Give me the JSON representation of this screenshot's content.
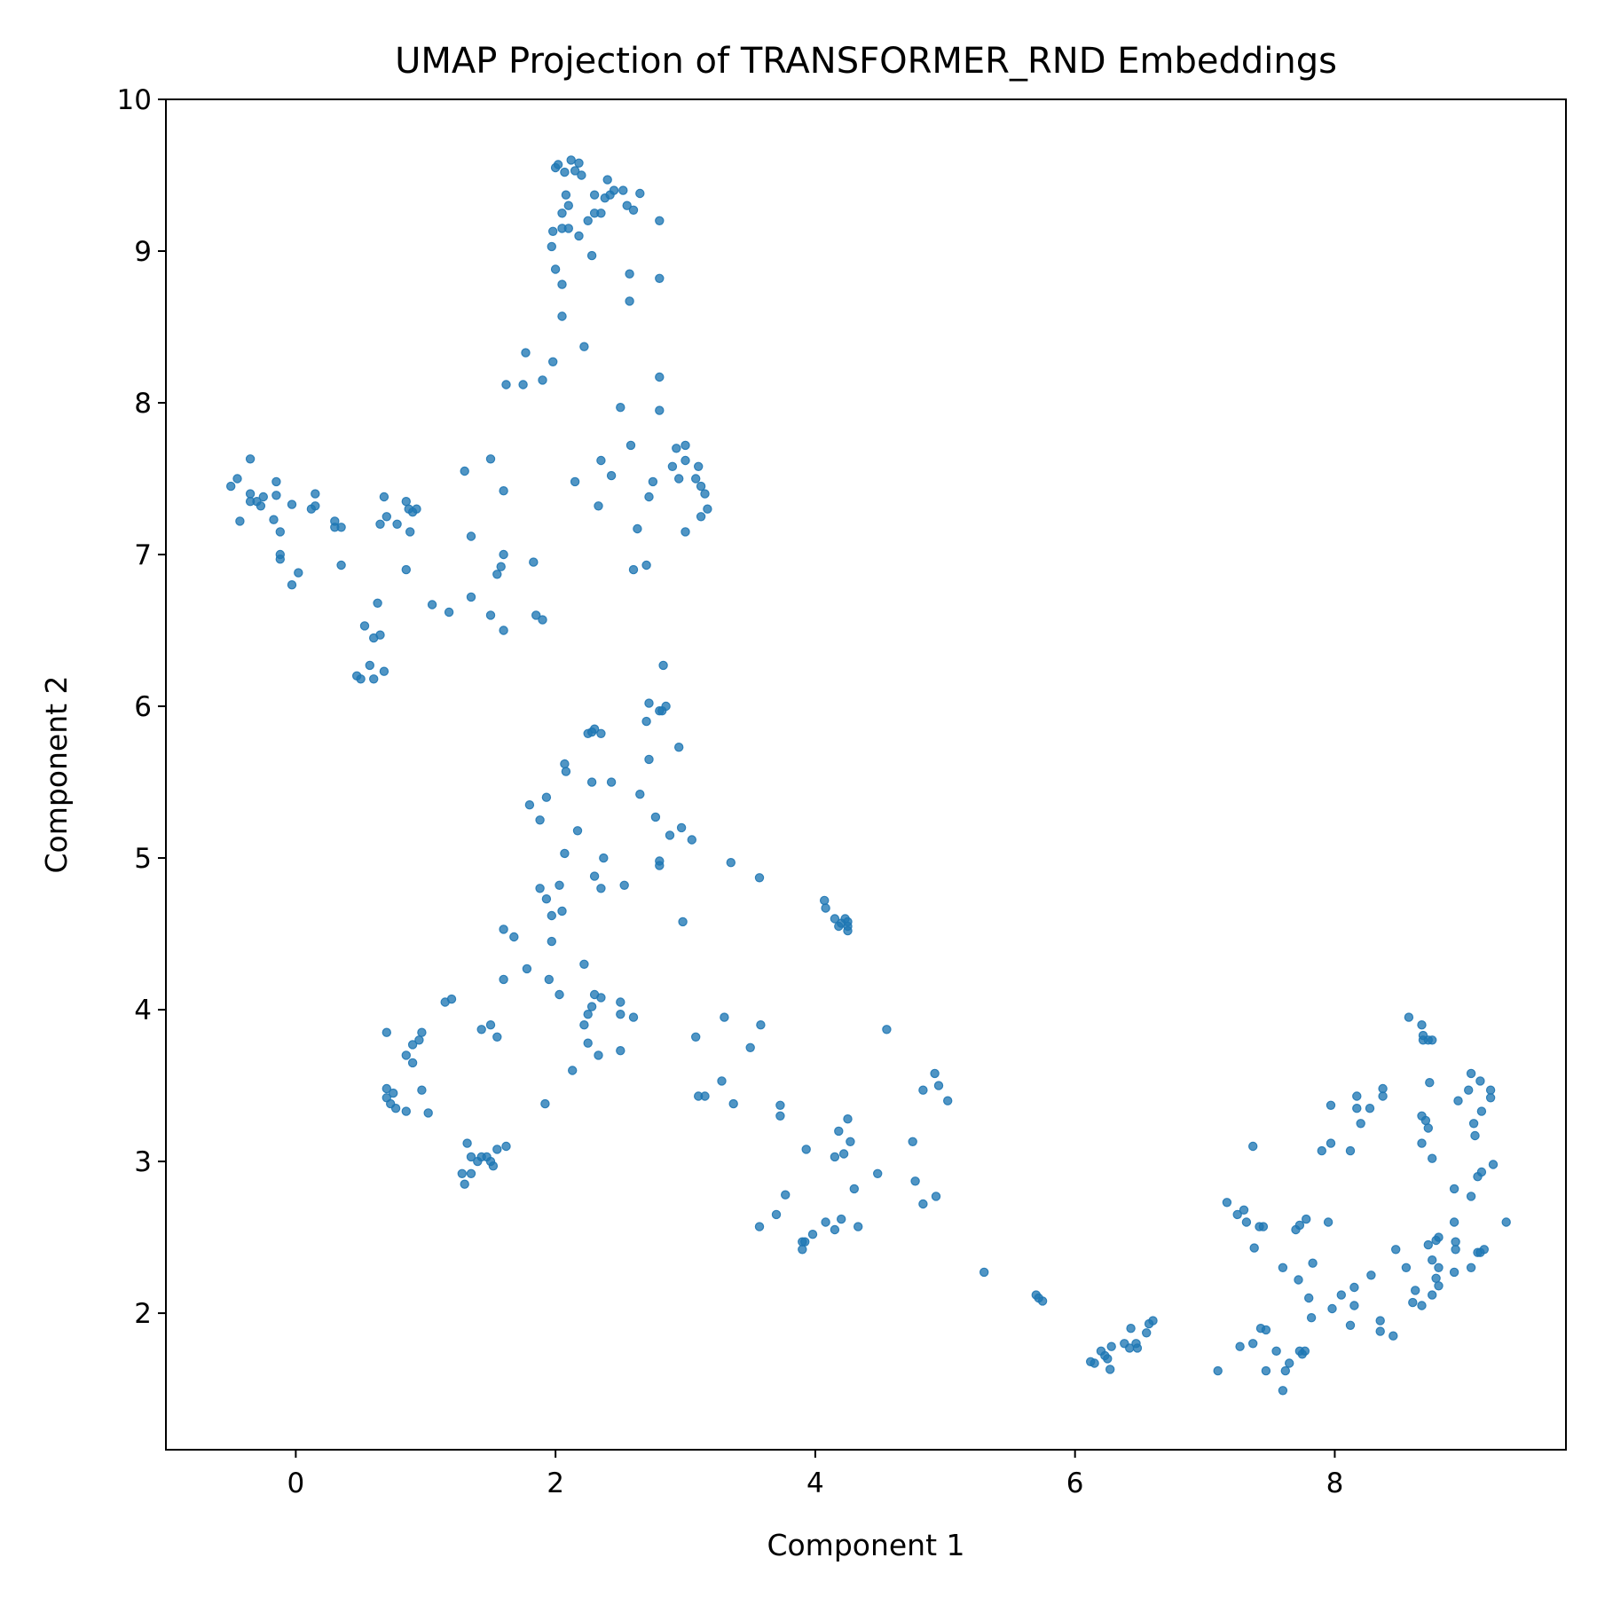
{
  "chart_data": {
    "type": "scatter",
    "title": "UMAP Projection of TRANSFORMER_RND Embeddings",
    "xlabel": "Component 1",
    "ylabel": "Component 2",
    "xlim": [
      -1.0,
      9.78
    ],
    "ylim": [
      1.1,
      10.0
    ],
    "xticks": [
      0,
      2,
      4,
      6,
      8
    ],
    "yticks": [
      2,
      3,
      4,
      5,
      6,
      7,
      8,
      9,
      10
    ],
    "grid": false,
    "legend": "none",
    "color": "#1f77b4",
    "points": [
      [
        2.0,
        9.55
      ],
      [
        2.02,
        9.57
      ],
      [
        2.12,
        9.6
      ],
      [
        2.18,
        9.58
      ],
      [
        2.07,
        9.52
      ],
      [
        2.2,
        9.5
      ],
      [
        2.15,
        9.53
      ],
      [
        2.4,
        9.47
      ],
      [
        2.45,
        9.4
      ],
      [
        2.52,
        9.4
      ],
      [
        2.65,
        9.38
      ],
      [
        2.3,
        9.37
      ],
      [
        2.42,
        9.37
      ],
      [
        2.38,
        9.35
      ],
      [
        2.08,
        9.37
      ],
      [
        2.1,
        9.3
      ],
      [
        2.55,
        9.3
      ],
      [
        2.6,
        9.27
      ],
      [
        2.05,
        9.25
      ],
      [
        2.3,
        9.25
      ],
      [
        2.35,
        9.25
      ],
      [
        2.25,
        9.2
      ],
      [
        2.8,
        9.2
      ],
      [
        2.05,
        9.15
      ],
      [
        2.1,
        9.15
      ],
      [
        1.98,
        9.13
      ],
      [
        2.18,
        9.1
      ],
      [
        1.97,
        9.03
      ],
      [
        2.28,
        8.97
      ],
      [
        2.0,
        8.88
      ],
      [
        2.57,
        8.85
      ],
      [
        2.8,
        8.82
      ],
      [
        2.05,
        8.78
      ],
      [
        2.57,
        8.67
      ],
      [
        2.05,
        8.57
      ],
      [
        2.22,
        8.37
      ],
      [
        1.77,
        8.33
      ],
      [
        1.98,
        8.27
      ],
      [
        1.9,
        8.15
      ],
      [
        1.62,
        8.12
      ],
      [
        1.75,
        8.12
      ],
      [
        2.8,
        8.17
      ],
      [
        2.5,
        7.97
      ],
      [
        2.8,
        7.95
      ],
      [
        2.58,
        7.72
      ],
      [
        2.93,
        7.7
      ],
      [
        3.0,
        7.72
      ],
      [
        1.5,
        7.63
      ],
      [
        2.35,
        7.62
      ],
      [
        3.0,
        7.62
      ],
      [
        2.9,
        7.58
      ],
      [
        3.1,
        7.58
      ],
      [
        1.3,
        7.55
      ],
      [
        2.43,
        7.52
      ],
      [
        2.95,
        7.5
      ],
      [
        3.08,
        7.5
      ],
      [
        2.15,
        7.48
      ],
      [
        2.75,
        7.48
      ],
      [
        3.12,
        7.45
      ],
      [
        3.15,
        7.4
      ],
      [
        1.6,
        7.42
      ],
      [
        2.72,
        7.38
      ],
      [
        2.33,
        7.32
      ],
      [
        3.17,
        7.3
      ],
      [
        3.12,
        7.25
      ],
      [
        2.63,
        7.17
      ],
      [
        3.0,
        7.15
      ],
      [
        2.7,
        6.93
      ],
      [
        2.6,
        6.9
      ],
      [
        -0.35,
        7.63
      ],
      [
        -0.45,
        7.5
      ],
      [
        -0.5,
        7.45
      ],
      [
        -0.35,
        7.4
      ],
      [
        -0.3,
        7.35
      ],
      [
        -0.25,
        7.38
      ],
      [
        -0.27,
        7.32
      ],
      [
        -0.35,
        7.35
      ],
      [
        -0.15,
        7.48
      ],
      [
        -0.15,
        7.39
      ],
      [
        0.15,
        7.4
      ],
      [
        0.12,
        7.3
      ],
      [
        0.15,
        7.32
      ],
      [
        -0.03,
        7.33
      ],
      [
        0.68,
        7.38
      ],
      [
        0.85,
        7.35
      ],
      [
        0.87,
        7.3
      ],
      [
        0.9,
        7.28
      ],
      [
        0.93,
        7.3
      ],
      [
        0.78,
        7.2
      ],
      [
        0.88,
        7.15
      ],
      [
        0.3,
        7.22
      ],
      [
        0.3,
        7.18
      ],
      [
        0.35,
        7.18
      ],
      [
        0.65,
        7.2
      ],
      [
        0.7,
        7.25
      ],
      [
        -0.43,
        7.22
      ],
      [
        -0.17,
        7.23
      ],
      [
        -0.12,
        7.15
      ],
      [
        -0.12,
        7.0
      ],
      [
        -0.12,
        6.97
      ],
      [
        0.02,
        6.88
      ],
      [
        -0.03,
        6.8
      ],
      [
        0.35,
        6.93
      ],
      [
        0.85,
        6.9
      ],
      [
        1.35,
        7.12
      ],
      [
        1.58,
        6.92
      ],
      [
        1.6,
        7.0
      ],
      [
        1.55,
        6.87
      ],
      [
        1.83,
        6.95
      ],
      [
        1.35,
        6.72
      ],
      [
        1.05,
        6.67
      ],
      [
        0.63,
        6.68
      ],
      [
        1.18,
        6.62
      ],
      [
        1.5,
        6.6
      ],
      [
        1.85,
        6.6
      ],
      [
        1.9,
        6.57
      ],
      [
        0.53,
        6.53
      ],
      [
        1.6,
        6.5
      ],
      [
        0.65,
        6.47
      ],
      [
        0.6,
        6.45
      ],
      [
        0.57,
        6.27
      ],
      [
        0.68,
        6.23
      ],
      [
        0.47,
        6.2
      ],
      [
        0.5,
        6.18
      ],
      [
        0.6,
        6.18
      ],
      [
        2.83,
        6.27
      ],
      [
        2.72,
        6.02
      ],
      [
        2.82,
        5.97
      ],
      [
        2.85,
        6.0
      ],
      [
        2.8,
        5.97
      ],
      [
        2.7,
        5.9
      ],
      [
        2.95,
        5.73
      ],
      [
        2.25,
        5.82
      ],
      [
        2.3,
        5.85
      ],
      [
        2.35,
        5.82
      ],
      [
        2.28,
        5.83
      ],
      [
        2.72,
        5.65
      ],
      [
        2.07,
        5.62
      ],
      [
        2.08,
        5.57
      ],
      [
        2.28,
        5.5
      ],
      [
        2.43,
        5.5
      ],
      [
        2.65,
        5.42
      ],
      [
        1.93,
        5.4
      ],
      [
        1.8,
        5.35
      ],
      [
        2.77,
        5.27
      ],
      [
        1.88,
        5.25
      ],
      [
        2.97,
        5.2
      ],
      [
        2.17,
        5.18
      ],
      [
        2.88,
        5.15
      ],
      [
        3.05,
        5.12
      ],
      [
        2.07,
        5.03
      ],
      [
        2.37,
        5.0
      ],
      [
        2.8,
        4.98
      ],
      [
        2.8,
        4.95
      ],
      [
        3.35,
        4.97
      ],
      [
        2.3,
        4.88
      ],
      [
        3.57,
        4.87
      ],
      [
        2.03,
        4.82
      ],
      [
        2.53,
        4.82
      ],
      [
        2.35,
        4.8
      ],
      [
        1.88,
        4.8
      ],
      [
        1.93,
        4.73
      ],
      [
        2.05,
        4.65
      ],
      [
        1.97,
        4.62
      ],
      [
        2.98,
        4.58
      ],
      [
        1.6,
        4.53
      ],
      [
        1.68,
        4.48
      ],
      [
        1.97,
        4.45
      ],
      [
        4.07,
        4.72
      ],
      [
        4.08,
        4.67
      ],
      [
        4.15,
        4.6
      ],
      [
        4.2,
        4.57
      ],
      [
        4.25,
        4.55
      ],
      [
        4.25,
        4.52
      ],
      [
        4.23,
        4.6
      ],
      [
        4.25,
        4.58
      ],
      [
        4.18,
        4.55
      ],
      [
        2.22,
        4.3
      ],
      [
        1.78,
        4.27
      ],
      [
        1.6,
        4.2
      ],
      [
        1.95,
        4.2
      ],
      [
        2.03,
        4.1
      ],
      [
        2.3,
        4.1
      ],
      [
        2.35,
        4.08
      ],
      [
        2.5,
        4.05
      ],
      [
        2.28,
        4.02
      ],
      [
        2.25,
        3.97
      ],
      [
        2.5,
        3.97
      ],
      [
        2.6,
        3.95
      ],
      [
        3.3,
        3.95
      ],
      [
        1.15,
        4.05
      ],
      [
        1.2,
        4.07
      ],
      [
        1.43,
        3.87
      ],
      [
        1.5,
        3.9
      ],
      [
        2.22,
        3.9
      ],
      [
        3.58,
        3.9
      ],
      [
        4.55,
        3.87
      ],
      [
        0.7,
        3.85
      ],
      [
        0.97,
        3.85
      ],
      [
        0.95,
        3.8
      ],
      [
        0.9,
        3.77
      ],
      [
        1.55,
        3.82
      ],
      [
        3.08,
        3.82
      ],
      [
        2.25,
        3.78
      ],
      [
        0.85,
        3.7
      ],
      [
        2.5,
        3.73
      ],
      [
        2.33,
        3.7
      ],
      [
        3.5,
        3.75
      ],
      [
        0.9,
        3.65
      ],
      [
        2.13,
        3.6
      ],
      [
        3.28,
        3.53
      ],
      [
        4.92,
        3.58
      ],
      [
        4.95,
        3.5
      ],
      [
        0.7,
        3.48
      ],
      [
        0.97,
        3.47
      ],
      [
        4.83,
        3.47
      ],
      [
        0.75,
        3.45
      ],
      [
        0.7,
        3.42
      ],
      [
        3.1,
        3.43
      ],
      [
        3.15,
        3.43
      ],
      [
        5.02,
        3.4
      ],
      [
        0.73,
        3.38
      ],
      [
        0.77,
        3.35
      ],
      [
        0.85,
        3.33
      ],
      [
        1.02,
        3.32
      ],
      [
        1.92,
        3.38
      ],
      [
        3.37,
        3.38
      ],
      [
        3.73,
        3.37
      ],
      [
        3.73,
        3.3
      ],
      [
        4.25,
        3.28
      ],
      [
        4.18,
        3.2
      ],
      [
        1.32,
        3.12
      ],
      [
        1.62,
        3.1
      ],
      [
        1.55,
        3.08
      ],
      [
        3.93,
        3.08
      ],
      [
        4.27,
        3.13
      ],
      [
        4.75,
        3.13
      ],
      [
        1.35,
        3.03
      ],
      [
        1.43,
        3.03
      ],
      [
        1.47,
        3.03
      ],
      [
        1.4,
        3.0
      ],
      [
        1.5,
        3.0
      ],
      [
        1.52,
        2.97
      ],
      [
        4.15,
        3.03
      ],
      [
        4.22,
        3.05
      ],
      [
        1.28,
        2.92
      ],
      [
        1.35,
        2.92
      ],
      [
        1.3,
        2.85
      ],
      [
        4.48,
        2.92
      ],
      [
        4.77,
        2.87
      ],
      [
        4.3,
        2.82
      ],
      [
        3.77,
        2.78
      ],
      [
        4.93,
        2.77
      ],
      [
        4.83,
        2.72
      ],
      [
        3.7,
        2.65
      ],
      [
        4.2,
        2.62
      ],
      [
        4.08,
        2.6
      ],
      [
        3.57,
        2.57
      ],
      [
        4.33,
        2.57
      ],
      [
        4.15,
        2.55
      ],
      [
        3.98,
        2.52
      ],
      [
        3.9,
        2.47
      ],
      [
        3.92,
        2.47
      ],
      [
        3.9,
        2.42
      ],
      [
        5.3,
        2.27
      ],
      [
        5.7,
        2.12
      ],
      [
        5.72,
        2.1
      ],
      [
        5.75,
        2.08
      ],
      [
        6.12,
        1.68
      ],
      [
        6.15,
        1.67
      ],
      [
        6.2,
        1.75
      ],
      [
        6.23,
        1.72
      ],
      [
        6.25,
        1.7
      ],
      [
        6.28,
        1.78
      ],
      [
        6.27,
        1.63
      ],
      [
        6.38,
        1.8
      ],
      [
        6.42,
        1.77
      ],
      [
        6.43,
        1.9
      ],
      [
        6.47,
        1.8
      ],
      [
        6.48,
        1.77
      ],
      [
        6.55,
        1.87
      ],
      [
        6.6,
        1.95
      ],
      [
        6.57,
        1.93
      ],
      [
        7.1,
        1.62
      ],
      [
        7.27,
        1.78
      ],
      [
        7.37,
        1.8
      ],
      [
        7.47,
        1.62
      ],
      [
        7.43,
        1.9
      ],
      [
        7.47,
        1.89
      ],
      [
        7.55,
        1.75
      ],
      [
        7.62,
        1.62
      ],
      [
        7.65,
        1.67
      ],
      [
        7.6,
        1.49
      ],
      [
        7.73,
        1.75
      ],
      [
        7.77,
        1.75
      ],
      [
        7.75,
        1.73
      ],
      [
        7.17,
        2.73
      ],
      [
        7.25,
        2.65
      ],
      [
        7.3,
        2.68
      ],
      [
        7.32,
        2.6
      ],
      [
        7.42,
        2.57
      ],
      [
        7.45,
        2.57
      ],
      [
        7.38,
        2.43
      ],
      [
        7.7,
        2.55
      ],
      [
        7.73,
        2.58
      ],
      [
        7.78,
        2.62
      ],
      [
        7.95,
        2.6
      ],
      [
        7.6,
        2.3
      ],
      [
        7.72,
        2.22
      ],
      [
        7.83,
        2.33
      ],
      [
        7.8,
        2.1
      ],
      [
        7.82,
        1.97
      ],
      [
        7.98,
        2.03
      ],
      [
        8.05,
        2.12
      ],
      [
        8.12,
        1.92
      ],
      [
        8.15,
        2.17
      ],
      [
        8.15,
        2.05
      ],
      [
        8.28,
        2.25
      ],
      [
        8.35,
        1.95
      ],
      [
        8.35,
        1.88
      ],
      [
        8.45,
        1.85
      ],
      [
        7.37,
        3.1
      ],
      [
        7.9,
        3.07
      ],
      [
        7.97,
        3.12
      ],
      [
        8.12,
        3.07
      ],
      [
        7.97,
        3.37
      ],
      [
        8.17,
        3.43
      ],
      [
        8.17,
        3.35
      ],
      [
        8.2,
        3.25
      ],
      [
        8.27,
        3.35
      ],
      [
        8.37,
        3.48
      ],
      [
        8.37,
        3.43
      ],
      [
        8.57,
        3.95
      ],
      [
        8.67,
        3.9
      ],
      [
        8.68,
        3.83
      ],
      [
        8.72,
        3.8
      ],
      [
        8.75,
        3.8
      ],
      [
        8.68,
        3.8
      ],
      [
        8.73,
        3.52
      ],
      [
        8.67,
        3.3
      ],
      [
        8.7,
        3.27
      ],
      [
        8.72,
        3.22
      ],
      [
        8.67,
        3.12
      ],
      [
        8.75,
        3.02
      ],
      [
        9.05,
        3.58
      ],
      [
        9.12,
        3.53
      ],
      [
        9.2,
        3.47
      ],
      [
        9.03,
        3.47
      ],
      [
        9.2,
        3.42
      ],
      [
        8.95,
        3.4
      ],
      [
        9.13,
        3.33
      ],
      [
        9.07,
        3.25
      ],
      [
        9.08,
        3.17
      ],
      [
        9.22,
        2.98
      ],
      [
        9.1,
        2.9
      ],
      [
        9.13,
        2.93
      ],
      [
        8.92,
        2.82
      ],
      [
        9.05,
        2.77
      ],
      [
        8.92,
        2.6
      ],
      [
        9.32,
        2.6
      ],
      [
        8.47,
        2.42
      ],
      [
        8.72,
        2.45
      ],
      [
        8.78,
        2.48
      ],
      [
        8.8,
        2.5
      ],
      [
        8.93,
        2.47
      ],
      [
        8.93,
        2.42
      ],
      [
        9.1,
        2.4
      ],
      [
        9.15,
        2.42
      ],
      [
        9.12,
        2.4
      ],
      [
        8.55,
        2.3
      ],
      [
        8.75,
        2.35
      ],
      [
        8.8,
        2.3
      ],
      [
        8.92,
        2.27
      ],
      [
        9.05,
        2.3
      ],
      [
        8.78,
        2.23
      ],
      [
        8.8,
        2.18
      ],
      [
        8.62,
        2.15
      ],
      [
        8.75,
        2.12
      ],
      [
        8.6,
        2.07
      ],
      [
        8.67,
        2.05
      ]
    ]
  }
}
